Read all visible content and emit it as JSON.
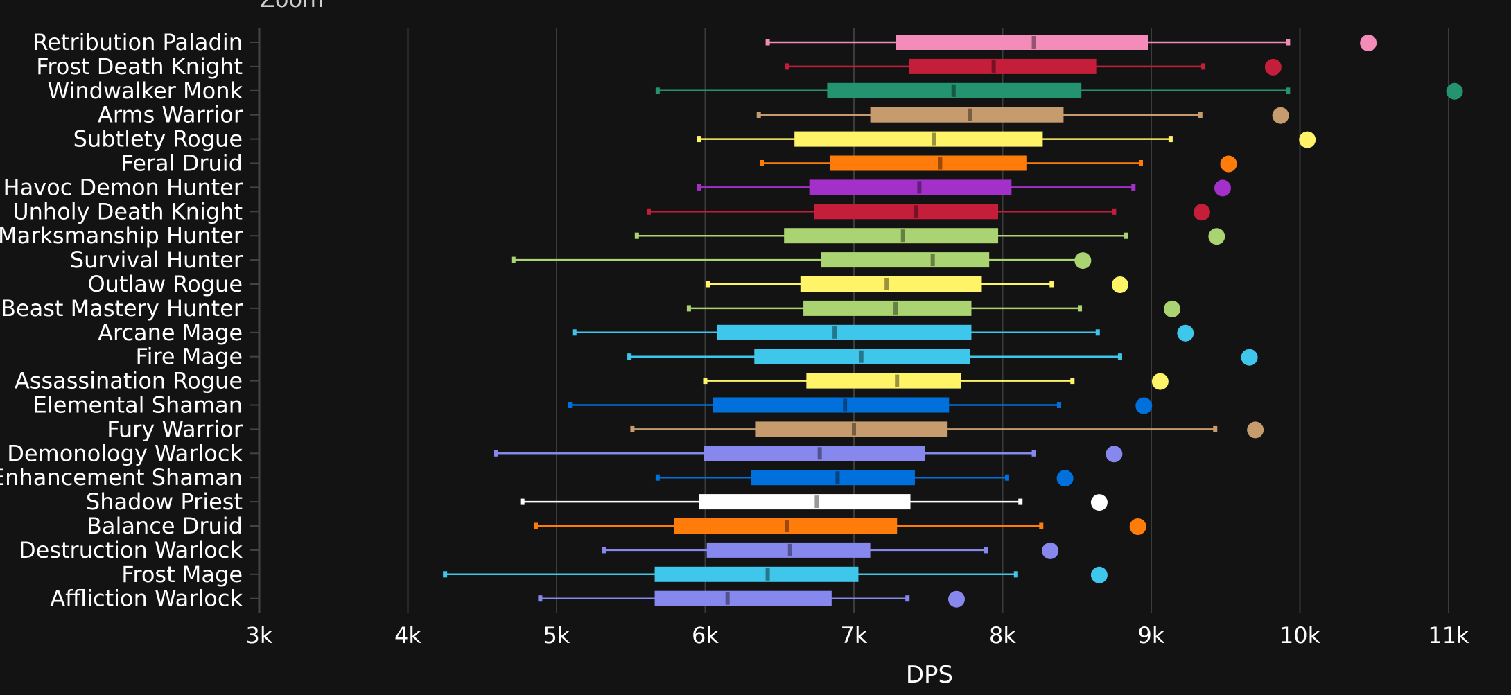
{
  "chart_data": {
    "type": "boxplot",
    "title": "",
    "top_left_label": "Zoom",
    "xlabel": "DPS",
    "ylabel": "",
    "xlim": [
      3000,
      11000
    ],
    "xticks": [
      {
        "value": 3000,
        "label": "3k"
      },
      {
        "value": 4000,
        "label": "4k"
      },
      {
        "value": 5000,
        "label": "5k"
      },
      {
        "value": 6000,
        "label": "6k"
      },
      {
        "value": 7000,
        "label": "7k"
      },
      {
        "value": 8000,
        "label": "8k"
      },
      {
        "value": 9000,
        "label": "9k"
      },
      {
        "value": 10000,
        "label": "10k"
      },
      {
        "value": 11000,
        "label": "11k"
      }
    ],
    "grid": true,
    "legend": "none",
    "series": [
      {
        "name": "Retribution Paladin",
        "color": "#F48CBA",
        "min": 6420,
        "q1": 7280,
        "median": 8210,
        "q3": 8980,
        "max": 9920,
        "outlier": 10460
      },
      {
        "name": "Frost Death Knight",
        "color": "#C41E3A",
        "min": 6550,
        "q1": 7370,
        "median": 7940,
        "q3": 8630,
        "max": 9350,
        "outlier": 9820
      },
      {
        "name": "Windwalker Monk",
        "color": "#249370",
        "min": 5680,
        "q1": 6820,
        "median": 7670,
        "q3": 8530,
        "max": 9920,
        "outlier": 11040
      },
      {
        "name": "Arms Warrior",
        "color": "#C69B6D",
        "min": 6360,
        "q1": 7110,
        "median": 7780,
        "q3": 8410,
        "max": 9330,
        "outlier": 9870
      },
      {
        "name": "Subtlety Rogue",
        "color": "#FFF468",
        "min": 5960,
        "q1": 6600,
        "median": 7540,
        "q3": 8270,
        "max": 9130,
        "outlier": 10050
      },
      {
        "name": "Feral Druid",
        "color": "#FF7C0A",
        "min": 6380,
        "q1": 6840,
        "median": 7580,
        "q3": 8160,
        "max": 8930,
        "outlier": 9520
      },
      {
        "name": "Havoc Demon Hunter",
        "color": "#A330C9",
        "min": 5960,
        "q1": 6700,
        "median": 7440,
        "q3": 8060,
        "max": 8880,
        "outlier": 9480
      },
      {
        "name": "Unholy Death Knight",
        "color": "#C41E3A",
        "min": 5620,
        "q1": 6730,
        "median": 7420,
        "q3": 7970,
        "max": 8750,
        "outlier": 9340
      },
      {
        "name": "Marksmanship Hunter",
        "color": "#AAD372",
        "min": 5540,
        "q1": 6530,
        "median": 7330,
        "q3": 7970,
        "max": 8830,
        "outlier": 9440
      },
      {
        "name": "Survival Hunter",
        "color": "#AAD372",
        "min": 4710,
        "q1": 6780,
        "median": 7530,
        "q3": 7910,
        "max": 8540,
        "outlier": 8540
      },
      {
        "name": "Outlaw Rogue",
        "color": "#FFF468",
        "min": 6020,
        "q1": 6640,
        "median": 7220,
        "q3": 7860,
        "max": 8330,
        "outlier": 8790
      },
      {
        "name": "Beast Mastery Hunter",
        "color": "#AAD372",
        "min": 5890,
        "q1": 6660,
        "median": 7280,
        "q3": 7790,
        "max": 8520,
        "outlier": 9140
      },
      {
        "name": "Arcane Mage",
        "color": "#3FC7EB",
        "min": 5120,
        "q1": 6080,
        "median": 6870,
        "q3": 7790,
        "max": 8640,
        "outlier": 9230
      },
      {
        "name": "Fire Mage",
        "color": "#3FC7EB",
        "min": 5490,
        "q1": 6330,
        "median": 7050,
        "q3": 7780,
        "max": 8790,
        "outlier": 9660
      },
      {
        "name": "Assassination Rogue",
        "color": "#FFF468",
        "min": 6000,
        "q1": 6680,
        "median": 7290,
        "q3": 7720,
        "max": 8470,
        "outlier": 9060
      },
      {
        "name": "Elemental Shaman",
        "color": "#0070DD",
        "min": 5090,
        "q1": 6050,
        "median": 6940,
        "q3": 7640,
        "max": 8380,
        "outlier": 8950
      },
      {
        "name": "Fury Warrior",
        "color": "#C69B6D",
        "min": 5510,
        "q1": 6340,
        "median": 7000,
        "q3": 7630,
        "max": 9430,
        "outlier": 9700
      },
      {
        "name": "Demonology Warlock",
        "color": "#8788EE",
        "min": 4590,
        "q1": 5990,
        "median": 6770,
        "q3": 7480,
        "max": 8210,
        "outlier": 8750
      },
      {
        "name": "Enhancement Shaman",
        "color": "#0070DD",
        "min": 5680,
        "q1": 6310,
        "median": 6890,
        "q3": 7410,
        "max": 8030,
        "outlier": 8420
      },
      {
        "name": "Shadow Priest",
        "color": "#FFFFFF",
        "min": 4770,
        "q1": 5960,
        "median": 6750,
        "q3": 7380,
        "max": 8120,
        "outlier": 8650
      },
      {
        "name": "Balance Druid",
        "color": "#FF7C0A",
        "min": 4860,
        "q1": 5790,
        "median": 6550,
        "q3": 7290,
        "max": 8260,
        "outlier": 8910
      },
      {
        "name": "Destruction Warlock",
        "color": "#8788EE",
        "min": 5320,
        "q1": 6010,
        "median": 6570,
        "q3": 7110,
        "max": 7890,
        "outlier": 8320
      },
      {
        "name": "Frost Mage",
        "color": "#3FC7EB",
        "min": 4250,
        "q1": 5660,
        "median": 6420,
        "q3": 7030,
        "max": 8090,
        "outlier": 8650
      },
      {
        "name": "Affliction Warlock",
        "color": "#8788EE",
        "min": 4890,
        "q1": 5660,
        "median": 6150,
        "q3": 6850,
        "max": 7360,
        "outlier": 7690
      }
    ]
  }
}
